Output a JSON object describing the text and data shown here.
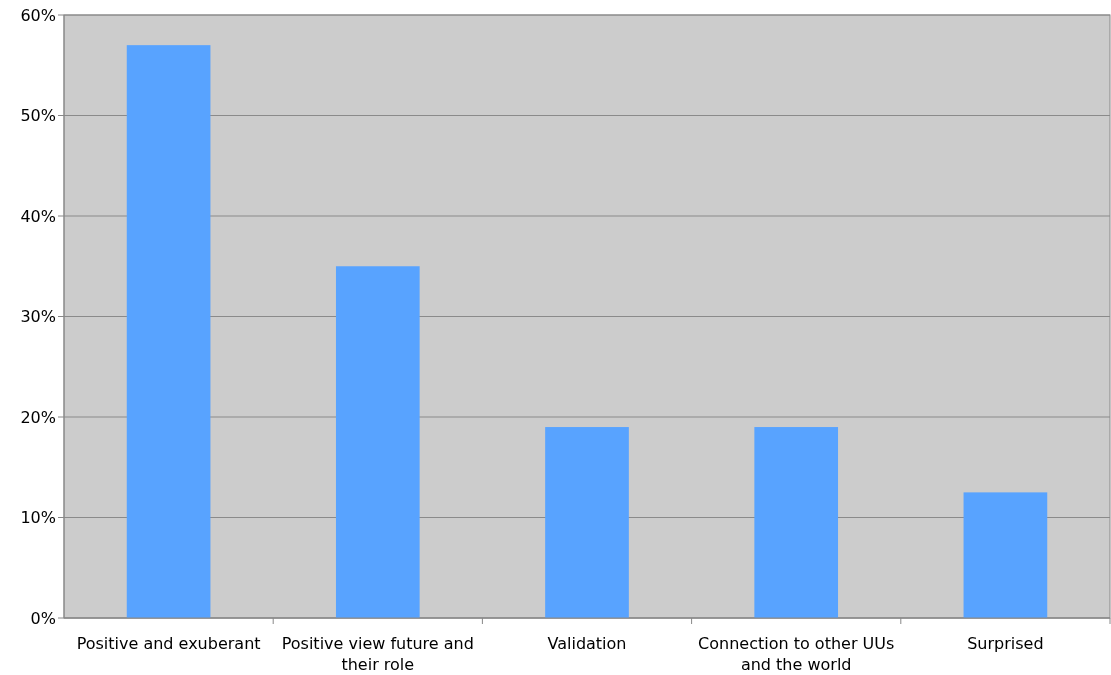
{
  "chart_data": {
    "type": "bar",
    "categories": [
      "Positive and exuberant",
      "Positive view future and their role",
      "Validation",
      "Connection to other UUs and the world",
      "Surprised"
    ],
    "values": [
      57,
      35,
      19,
      19,
      12.5
    ],
    "color": "#58a3ff",
    "ylim": [
      0,
      60
    ],
    "yticks": [
      {
        "value": 0,
        "label": "0%"
      },
      {
        "value": 10,
        "label": "10%"
      },
      {
        "value": 20,
        "label": "20%"
      },
      {
        "value": 30,
        "label": "30%"
      },
      {
        "value": 40,
        "label": "40%"
      },
      {
        "value": 50,
        "label": "50%"
      },
      {
        "value": 60,
        "label": "60%"
      }
    ],
    "grid": "y"
  }
}
